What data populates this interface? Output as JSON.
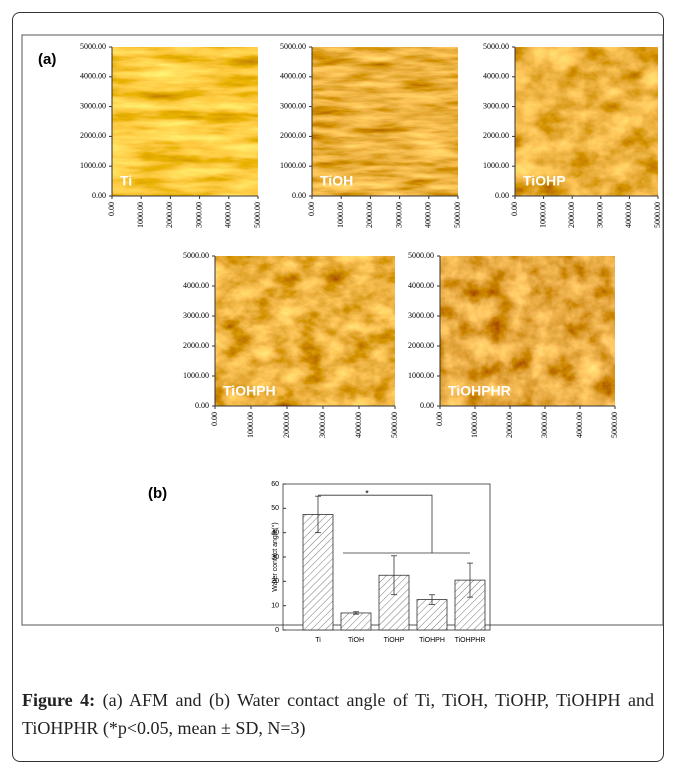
{
  "panel_a_label": "(a)",
  "afm_ticks": [
    {
      "value": 0,
      "label": "0.00"
    },
    {
      "value": 1000,
      "label": "1000.00"
    },
    {
      "value": 2000,
      "label": "2000.00"
    },
    {
      "value": 3000,
      "label": "3000.00"
    },
    {
      "value": 4000,
      "label": "4000.00"
    },
    {
      "value": 5000,
      "label": "5000.00"
    }
  ],
  "afm_range": [
    0,
    5000
  ],
  "afm_images": [
    {
      "label": "Ti"
    },
    {
      "label": "TiOH"
    },
    {
      "label": "TiOHP"
    },
    {
      "label": "TiOHPH"
    },
    {
      "label": "TiOHPHR"
    }
  ],
  "panel_b_label": "(b)",
  "chart_data": {
    "type": "bar",
    "y_label": "Water contact angle(°)",
    "categories": [
      "Ti",
      "TiOH",
      "TiOHP",
      "TiOHPH",
      "TiOHPHR"
    ],
    "values": [
      47.5,
      7,
      22.5,
      12.5,
      20.5
    ],
    "errors": [
      7.5,
      0.5,
      8,
      2,
      7
    ],
    "ylim": [
      0,
      60
    ],
    "yticks": [
      0,
      10,
      20,
      30,
      40,
      50,
      60
    ],
    "significance": "*",
    "hatch": true
  },
  "caption": {
    "label": "Figure 4:",
    "text": "(a) AFM and (b) Water contact angle of Ti, TiOH, TiOHP, TiOHPH and TiOHPHR (*p<0.05, mean ± SD, N=3)"
  }
}
